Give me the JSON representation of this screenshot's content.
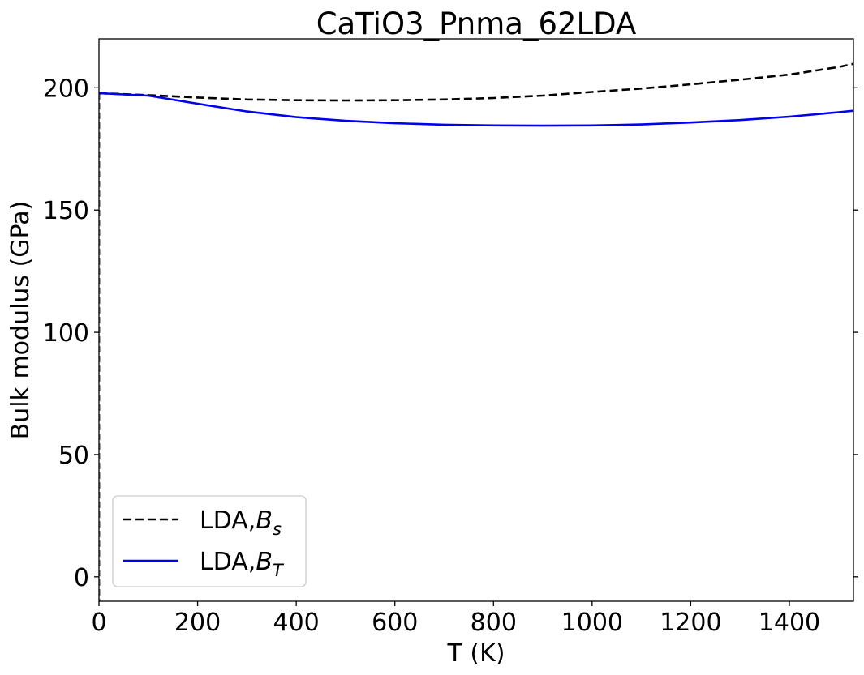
{
  "chart_data": {
    "type": "line",
    "title": "CaTiO3_Pnma_62LDA",
    "xlabel": "T (K)",
    "ylabel": "Bulk modulus (GPa)",
    "xlim": [
      0,
      1530
    ],
    "ylim": [
      -10,
      220
    ],
    "xticks": [
      0,
      200,
      400,
      600,
      800,
      1000,
      1200,
      1400
    ],
    "yticks": [
      0,
      50,
      100,
      150,
      200
    ],
    "grid": false,
    "legend_position": "lower-left",
    "series": [
      {
        "name": "LDA,B_s",
        "label_prefix": "LDA,",
        "label_symbol": "B",
        "label_sub": "s",
        "color": "#000000",
        "dash": "dashed",
        "x": [
          0,
          100,
          200,
          300,
          400,
          500,
          600,
          700,
          800,
          900,
          1000,
          1100,
          1200,
          1300,
          1400,
          1500,
          1530
        ],
        "y": [
          197.8,
          197.0,
          196.0,
          195.2,
          194.9,
          194.8,
          194.9,
          195.2,
          195.8,
          196.8,
          198.3,
          199.7,
          201.4,
          203.3,
          205.4,
          208.5,
          209.8
        ]
      },
      {
        "name": "LDA,B_T",
        "label_prefix": "LDA,",
        "label_symbol": "B",
        "label_sub": "T",
        "color": "#0000ee",
        "dash": "solid",
        "x": [
          0,
          100,
          200,
          300,
          400,
          500,
          600,
          700,
          800,
          900,
          1000,
          1100,
          1200,
          1300,
          1400,
          1500,
          1530
        ],
        "y": [
          197.8,
          196.8,
          193.5,
          190.3,
          188.0,
          186.5,
          185.5,
          184.9,
          184.6,
          184.5,
          184.6,
          185.0,
          185.8,
          186.8,
          188.2,
          190.0,
          190.6
        ]
      }
    ]
  }
}
